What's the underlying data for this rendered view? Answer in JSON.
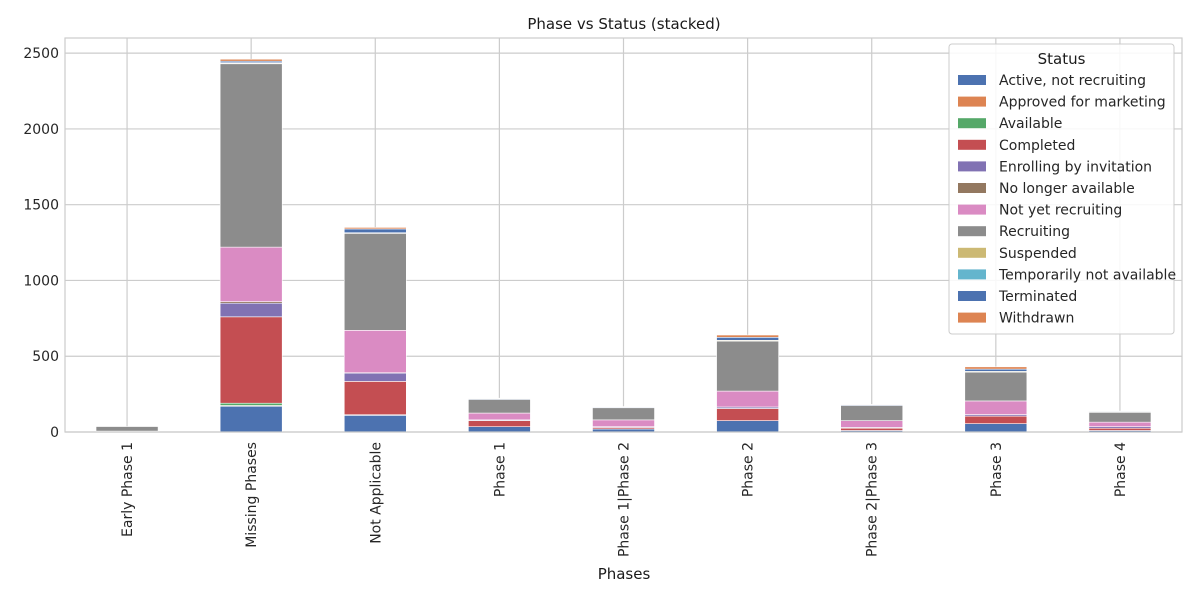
{
  "chart_data": {
    "type": "bar",
    "stacked": true,
    "title": "Phase vs Status (stacked)",
    "xlabel": "Phases",
    "ylabel": "",
    "ylim": [
      0,
      2600
    ],
    "yticks": [
      0,
      500,
      1000,
      1500,
      2000,
      2500
    ],
    "grid": true,
    "legend_title": "Status",
    "legend_position": "top-right",
    "categories": [
      "Early Phase 1",
      "Missing Phases",
      "Not Applicable",
      "Phase 1",
      "Phase 1|Phase 2",
      "Phase 2",
      "Phase 2|Phase 3",
      "Phase 3",
      "Phase 4"
    ],
    "series": [
      {
        "name": "Active, not recruiting",
        "color": "#4c72b0",
        "values": [
          1,
          170,
          110,
          35,
          20,
          75,
          10,
          55,
          10
        ]
      },
      {
        "name": "Approved for marketing",
        "color": "#dd8452",
        "values": [
          0,
          5,
          2,
          0,
          0,
          0,
          0,
          0,
          0
        ]
      },
      {
        "name": "Available",
        "color": "#55a868",
        "values": [
          0,
          15,
          2,
          0,
          0,
          0,
          0,
          0,
          0
        ]
      },
      {
        "name": "Completed",
        "color": "#c44e52",
        "values": [
          2,
          570,
          220,
          40,
          10,
          80,
          15,
          50,
          15
        ]
      },
      {
        "name": "Enrolling by invitation",
        "color": "#8172b3",
        "values": [
          1,
          90,
          55,
          5,
          5,
          10,
          5,
          10,
          10
        ]
      },
      {
        "name": "No longer available",
        "color": "#937860",
        "values": [
          0,
          10,
          2,
          0,
          0,
          0,
          0,
          0,
          0
        ]
      },
      {
        "name": "Not yet recruiting",
        "color": "#da8bc3",
        "values": [
          2,
          360,
          280,
          45,
          45,
          105,
          45,
          90,
          30
        ]
      },
      {
        "name": "Recruiting",
        "color": "#8c8c8c",
        "values": [
          30,
          1210,
          640,
          90,
          80,
          330,
          100,
          190,
          65
        ]
      },
      {
        "name": "Suspended",
        "color": "#ccb974",
        "values": [
          0,
          5,
          3,
          0,
          0,
          5,
          0,
          5,
          0
        ]
      },
      {
        "name": "Temporarily not available",
        "color": "#64b5cd",
        "values": [
          0,
          2,
          1,
          0,
          0,
          0,
          0,
          0,
          0
        ]
      },
      {
        "name": "Terminated",
        "color": "#4c72b0",
        "values": [
          0,
          10,
          25,
          5,
          5,
          20,
          5,
          15,
          5
        ]
      },
      {
        "name": "Withdrawn",
        "color": "#dd8452",
        "values": [
          0,
          13,
          10,
          3,
          3,
          15,
          2,
          15,
          3
        ]
      }
    ]
  }
}
